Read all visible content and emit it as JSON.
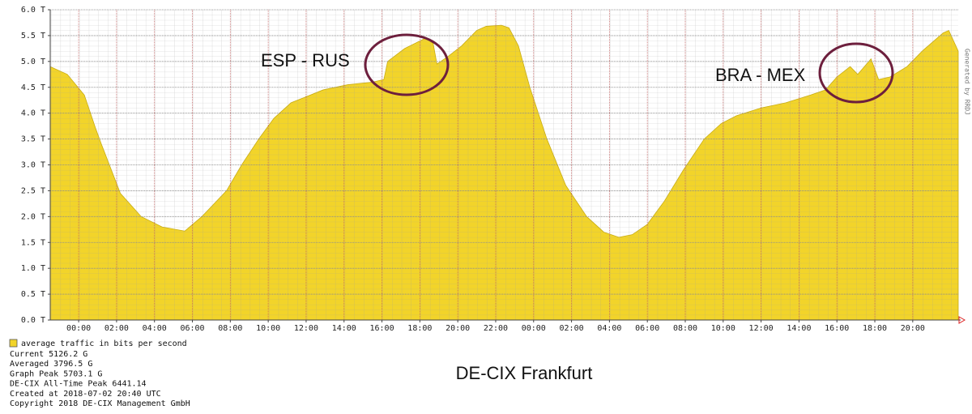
{
  "chart_data": {
    "type": "area",
    "subtitle": "DE-CIX Frankfurt",
    "watermark": "Generated by RRDJ",
    "x": [
      -1.5,
      -0.6,
      0.3,
      0.9,
      1.2,
      2.2,
      3.3,
      4.4,
      5.6,
      6.5,
      7.8,
      8.6,
      9.5,
      10.3,
      11.2,
      12.9,
      14.2,
      15.5,
      16.1,
      16.3,
      17.2,
      18.3,
      18.7,
      18.9,
      19.5,
      20.2,
      21.0,
      21.5,
      22.3,
      22.7,
      23.2,
      23.8,
      24.7,
      25.7,
      26.8,
      27.7,
      28.5,
      29.2,
      30.0,
      30.9,
      31.9,
      33.0,
      33.9,
      34.7,
      36.0,
      37.3,
      38.6,
      39.4,
      40.0,
      40.7,
      41.1,
      41.8,
      42.2,
      42.8,
      43.7,
      44.5,
      45.6,
      45.9,
      46.4
    ],
    "series": [
      {
        "name": "average traffic in bits per second",
        "color": "#f2d42a",
        "values": [
          4.9,
          4.75,
          4.35,
          3.7,
          3.4,
          2.45,
          2.0,
          1.8,
          1.72,
          2.0,
          2.5,
          3.0,
          3.5,
          3.9,
          4.2,
          4.45,
          4.55,
          4.6,
          4.65,
          5.0,
          5.25,
          5.45,
          5.35,
          4.95,
          5.1,
          5.3,
          5.6,
          5.68,
          5.7,
          5.65,
          5.3,
          4.5,
          3.5,
          2.6,
          2.0,
          1.7,
          1.6,
          1.65,
          1.85,
          2.3,
          2.9,
          3.5,
          3.8,
          3.95,
          4.1,
          4.2,
          4.35,
          4.45,
          4.7,
          4.9,
          4.75,
          5.05,
          4.65,
          4.7,
          4.9,
          5.2,
          5.55,
          5.6,
          5.2
        ]
      }
    ],
    "xlim": [
      -1.5,
      46.4
    ],
    "ylim": [
      0,
      6
    ],
    "xticks": [
      {
        "value": 0,
        "label": "00:00"
      },
      {
        "value": 2,
        "label": "02:00"
      },
      {
        "value": 4,
        "label": "04:00"
      },
      {
        "value": 6,
        "label": "06:00"
      },
      {
        "value": 8,
        "label": "08:00"
      },
      {
        "value": 10,
        "label": "10:00"
      },
      {
        "value": 12,
        "label": "12:00"
      },
      {
        "value": 14,
        "label": "14:00"
      },
      {
        "value": 16,
        "label": "16:00"
      },
      {
        "value": 18,
        "label": "18:00"
      },
      {
        "value": 20,
        "label": "20:00"
      },
      {
        "value": 22,
        "label": "22:00"
      },
      {
        "value": 24,
        "label": "00:00"
      },
      {
        "value": 26,
        "label": "02:00"
      },
      {
        "value": 28,
        "label": "04:00"
      },
      {
        "value": 30,
        "label": "06:00"
      },
      {
        "value": 32,
        "label": "08:00"
      },
      {
        "value": 34,
        "label": "10:00"
      },
      {
        "value": 36,
        "label": "12:00"
      },
      {
        "value": 38,
        "label": "14:00"
      },
      {
        "value": 40,
        "label": "16:00"
      },
      {
        "value": 42,
        "label": "18:00"
      },
      {
        "value": 44,
        "label": "20:00"
      }
    ],
    "yticks": [
      {
        "value": 0,
        "label": "0.0 T"
      },
      {
        "value": 0.5,
        "label": "0.5 T"
      },
      {
        "value": 1,
        "label": "1.0 T"
      },
      {
        "value": 1.5,
        "label": "1.5 T"
      },
      {
        "value": 2,
        "label": "2.0 T"
      },
      {
        "value": 2.5,
        "label": "2.5 T"
      },
      {
        "value": 3,
        "label": "3.0 T"
      },
      {
        "value": 3.5,
        "label": "3.5 T"
      },
      {
        "value": 4,
        "label": "4.0 T"
      },
      {
        "value": 4.5,
        "label": "4.5 T"
      },
      {
        "value": 5,
        "label": "5.0 T"
      },
      {
        "value": 5.5,
        "label": "5.5 T"
      },
      {
        "value": 6,
        "label": "6.0 T"
      }
    ],
    "grid": true,
    "annotations": [
      "ESP - RUS",
      "BRA - MEX"
    ],
    "notes": [
      "Current 5126.2 G",
      "Averaged 3796.5 G",
      "Graph Peak 5703.1 G",
      "DE-CIX All-Time Peak 6441.14",
      "Created at 2018-07-02 20:40 UTC",
      "Copyright 2018 DE-CIX Management GmbH"
    ]
  }
}
